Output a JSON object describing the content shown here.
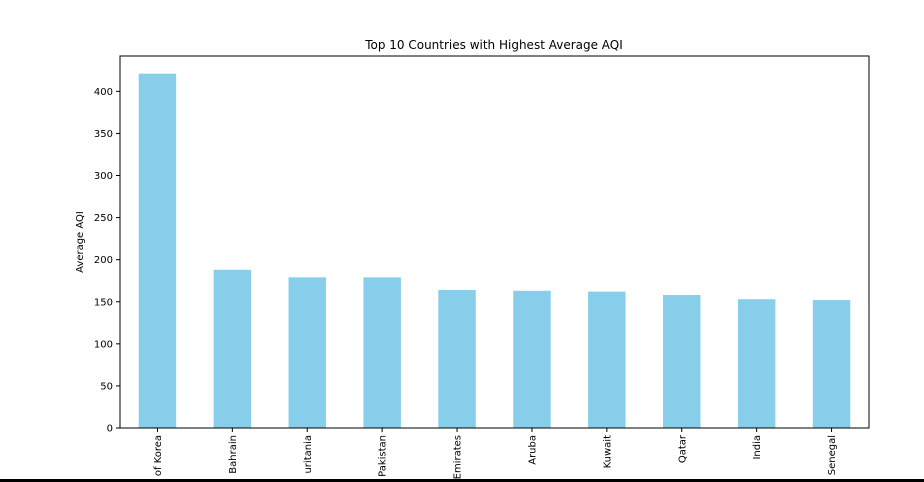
{
  "chart_data": {
    "type": "bar",
    "title": "Top 10 Countries with Highest Average AQI",
    "xlabel": "",
    "ylabel": "Average AQI",
    "categories": [
      "of Korea",
      "Bahrain",
      "uritania",
      "Pakistan",
      "Emirates",
      "Aruba",
      "Kuwait",
      "Qatar",
      "India",
      "Senegal"
    ],
    "values": [
      421,
      188,
      179,
      179,
      164,
      163,
      162,
      158,
      153,
      152
    ],
    "yticks": [
      "0",
      "50",
      "100",
      "150",
      "200",
      "250",
      "300",
      "350",
      "400"
    ],
    "ylim": [
      0,
      442
    ],
    "bar_color": "#87ceeb",
    "grid": false,
    "legend": "none"
  }
}
